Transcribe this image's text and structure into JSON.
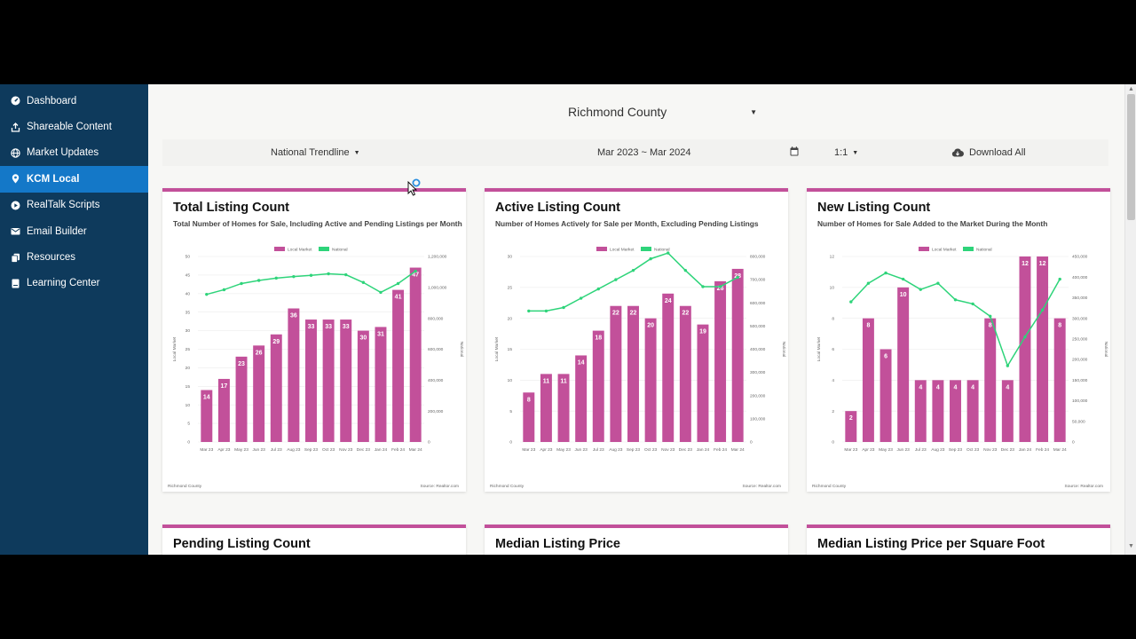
{
  "sidebar": {
    "items": [
      {
        "label": "Dashboard",
        "icon": "dashboard-icon"
      },
      {
        "label": "Shareable Content",
        "icon": "share-icon"
      },
      {
        "label": "Market Updates",
        "icon": "globe-icon"
      },
      {
        "label": "KCM Local",
        "icon": "location-pin-icon",
        "active": true
      },
      {
        "label": "RealTalk Scripts",
        "icon": "play-icon"
      },
      {
        "label": "Email Builder",
        "icon": "envelope-icon"
      },
      {
        "label": "Resources",
        "icon": "copy-icon"
      },
      {
        "label": "Learning Center",
        "icon": "book-icon"
      }
    ]
  },
  "header": {
    "county": "Richmond County"
  },
  "filters": {
    "trendline": "National Trendline",
    "date_range": "Mar 2023 ~ Mar 2024",
    "ratio": "1:1",
    "download": "Download All"
  },
  "cards": [
    {
      "title": "Total Listing Count",
      "subtitle": "Total Number of Homes for Sale, Including Active and Pending Listings per Month"
    },
    {
      "title": "Active Listing Count",
      "subtitle": "Number of Homes Actively for Sale per Month, Excluding Pending Listings"
    },
    {
      "title": "New Listing Count",
      "subtitle": "Number of Homes for Sale Added to the Market During the Month"
    },
    {
      "title": "Pending Listing Count"
    },
    {
      "title": "Median Listing Price"
    },
    {
      "title": "Median Listing Price per Square Foot"
    }
  ],
  "colors": {
    "sidebar_bg": "#0e3a5c",
    "active_nav": "#1478c8",
    "accent": "#c2509a",
    "national_line": "#2ed47a"
  },
  "chart_data": [
    {
      "type": "bar",
      "title": "Total Listing Count",
      "categories": [
        "Mar 23",
        "Apr 23",
        "May 23",
        "Jun 23",
        "Jul 23",
        "Aug 23",
        "Sep 23",
        "Oct 23",
        "Nov 23",
        "Dec 23",
        "Jan 24",
        "Feb 24",
        "Mar 24"
      ],
      "series": [
        {
          "name": "Local Market",
          "values": [
            14,
            17,
            23,
            26,
            29,
            36,
            33,
            33,
            33,
            30,
            31,
            41,
            47
          ],
          "axis": "left"
        },
        {
          "name": "National",
          "values": [
            955000,
            985000,
            1025000,
            1045000,
            1060000,
            1070000,
            1078000,
            1088000,
            1082000,
            1032000,
            968000,
            1025000,
            1105000
          ],
          "axis": "right"
        }
      ],
      "ylabel": "Local Market",
      "y2label": "National",
      "ylim": [
        0,
        50
      ],
      "y2lim": [
        0,
        1200000
      ],
      "yticks": [
        "0",
        "5",
        "10",
        "15",
        "20",
        "25",
        "30",
        "35",
        "40",
        "45",
        "50"
      ],
      "y2ticks": [
        "0",
        "200,000",
        "400,000",
        "600,000",
        "800,000",
        "1,000,000",
        "1,200,000"
      ],
      "legend": [
        "Local Market",
        "National"
      ],
      "footer_left": "Richmond County",
      "footer_right": "Source: Realtor.com"
    },
    {
      "type": "bar",
      "title": "Active Listing Count",
      "categories": [
        "Mar 23",
        "Apr 23",
        "May 23",
        "Jun 23",
        "Jul 23",
        "Aug 23",
        "Sep 23",
        "Oct 23",
        "Nov 23",
        "Dec 23",
        "Jan 24",
        "Feb 24",
        "Mar 24"
      ],
      "series": [
        {
          "name": "Local Market",
          "values": [
            8,
            11,
            11,
            14,
            18,
            22,
            22,
            20,
            24,
            22,
            19,
            26,
            28
          ],
          "axis": "left"
        },
        {
          "name": "National",
          "values": [
            565000,
            565000,
            580000,
            620000,
            660000,
            700000,
            740000,
            790000,
            815000,
            740000,
            670000,
            670000,
            710000
          ],
          "axis": "right"
        }
      ],
      "ylabel": "Local Market",
      "y2label": "National",
      "ylim": [
        0,
        30
      ],
      "y2lim": [
        0,
        800000
      ],
      "yticks": [
        "0",
        "5",
        "10",
        "15",
        "20",
        "25",
        "30"
      ],
      "y2ticks": [
        "0",
        "100,000",
        "200,000",
        "300,000",
        "400,000",
        "500,000",
        "600,000",
        "700,000",
        "800,000"
      ],
      "legend": [
        "Local Market",
        "National"
      ],
      "footer_left": "Richmond County",
      "footer_right": "Source: Realtor.com"
    },
    {
      "type": "bar",
      "title": "New Listing Count",
      "categories": [
        "Mar 23",
        "Apr 23",
        "May 23",
        "Jun 23",
        "Jul 23",
        "Aug 23",
        "Sep 23",
        "Oct 23",
        "Nov 23",
        "Dec 23",
        "Jan 24",
        "Feb 24",
        "Mar 24"
      ],
      "series": [
        {
          "name": "Local Market",
          "values": [
            2,
            8,
            6,
            10,
            4,
            4,
            4,
            4,
            8,
            4,
            12,
            12,
            8
          ],
          "axis": "left"
        },
        {
          "name": "National",
          "values": [
            340000,
            385000,
            410000,
            395000,
            370000,
            385000,
            345000,
            335000,
            305000,
            185000,
            255000,
            320000,
            395000
          ],
          "axis": "right"
        }
      ],
      "ylabel": "Local Market",
      "y2label": "National",
      "ylim": [
        0,
        12
      ],
      "y2lim": [
        0,
        450000
      ],
      "yticks": [
        "0",
        "2",
        "4",
        "6",
        "8",
        "10",
        "12"
      ],
      "y2ticks": [
        "0",
        "50,000",
        "100,000",
        "150,000",
        "200,000",
        "250,000",
        "300,000",
        "350,000",
        "400,000",
        "450,000"
      ],
      "legend": [
        "Local Market",
        "National"
      ],
      "footer_left": "Richmond County",
      "footer_right": "Source: Realtor.com"
    }
  ]
}
